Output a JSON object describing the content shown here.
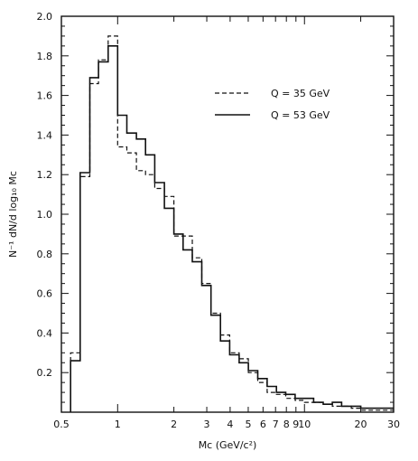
{
  "chart_data": {
    "type": "line",
    "title": "",
    "xlabel": "Mc (GeV/c²)",
    "ylabel": "N⁻¹ dN/d log₁₀ Mc",
    "xscale": "log",
    "xlim": [
      0.5,
      30
    ],
    "ylim": [
      0.0,
      2.0
    ],
    "xtick_values": [
      0.5,
      1,
      2,
      3,
      4,
      5,
      6,
      7,
      8,
      9,
      10,
      20,
      30
    ],
    "xtick_labels": [
      "0.5",
      "1",
      "2",
      "3",
      "4",
      "5",
      "6",
      "7",
      "8",
      "9",
      "10",
      "20",
      "30"
    ],
    "ytick_values": [
      0.2,
      0.4,
      0.6,
      0.8,
      1.0,
      1.2,
      1.4,
      1.6,
      1.8,
      2.0
    ],
    "ytick_labels": [
      "0.2",
      "0.4",
      "0.6",
      "0.8",
      "1.0",
      "1.2",
      "1.4",
      "1.6",
      "1.8",
      "2.0"
    ],
    "grid": false,
    "legend_position": "upper-right",
    "bin_edges": [
      0.56,
      0.63,
      0.71,
      0.79,
      0.89,
      1.0,
      1.12,
      1.26,
      1.41,
      1.58,
      1.78,
      2.0,
      2.24,
      2.51,
      2.82,
      3.16,
      3.55,
      3.98,
      4.47,
      5.01,
      5.62,
      6.31,
      7.08,
      7.94,
      8.91,
      10.0,
      11.2,
      12.6,
      14.1,
      15.8,
      17.8,
      20.0,
      30.0
    ],
    "series": [
      {
        "name": "Q = 35 GeV",
        "style": "dashed",
        "values": [
          0.3,
          1.19,
          1.66,
          1.78,
          1.9,
          1.34,
          1.31,
          1.22,
          1.2,
          1.13,
          1.09,
          0.89,
          0.89,
          0.78,
          0.65,
          0.5,
          0.39,
          0.3,
          0.27,
          0.2,
          0.15,
          0.1,
          0.09,
          0.07,
          0.06,
          0.05,
          0.05,
          0.04,
          0.03,
          0.03,
          0.02,
          0.01
        ]
      },
      {
        "name": "Q = 53 GeV",
        "style": "solid",
        "values": [
          0.26,
          1.21,
          1.69,
          1.77,
          1.85,
          1.5,
          1.41,
          1.38,
          1.3,
          1.16,
          1.03,
          0.9,
          0.82,
          0.76,
          0.64,
          0.49,
          0.36,
          0.29,
          0.25,
          0.21,
          0.17,
          0.13,
          0.1,
          0.09,
          0.07,
          0.07,
          0.05,
          0.04,
          0.05,
          0.03,
          0.03,
          0.02
        ]
      }
    ]
  }
}
